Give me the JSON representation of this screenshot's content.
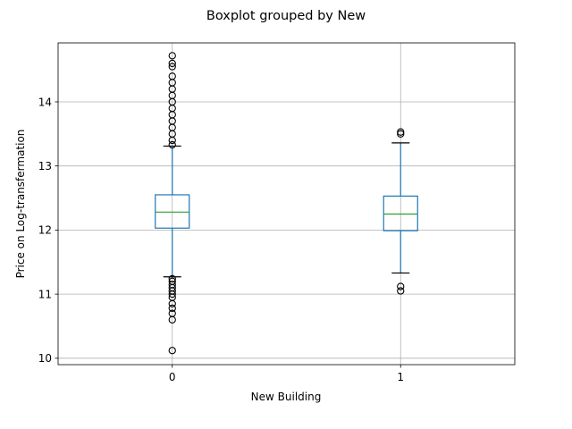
{
  "chart_data": {
    "type": "box",
    "title": "Boxplot grouped by New",
    "xlabel": "New Building",
    "ylabel": "Price on Log-transfermation",
    "categories": [
      "0",
      "1"
    ],
    "ylim": [
      9.9,
      14.92
    ],
    "yticks": [
      10,
      11,
      12,
      13,
      14
    ],
    "grid": true,
    "box_color": "#1f77b4",
    "median_color": "#2ca02c",
    "grid_color": "#b0b0b0",
    "boxes": [
      {
        "category": "0",
        "whisker_low": 11.27,
        "q1": 12.03,
        "median": 12.28,
        "q3": 12.55,
        "whisker_high": 13.31,
        "outliers": [
          10.12,
          10.6,
          10.7,
          10.78,
          10.85,
          10.95,
          11.0,
          11.05,
          11.1,
          11.15,
          11.2,
          11.24,
          13.33,
          13.4,
          13.5,
          13.6,
          13.7,
          13.8,
          13.9,
          14.0,
          14.1,
          14.2,
          14.3,
          14.4,
          14.55,
          14.6,
          14.72
        ]
      },
      {
        "category": "1",
        "whisker_low": 11.33,
        "q1": 11.99,
        "median": 12.25,
        "q3": 12.53,
        "whisker_high": 13.36,
        "outliers": [
          11.05,
          11.12,
          13.5,
          13.53
        ]
      }
    ]
  }
}
